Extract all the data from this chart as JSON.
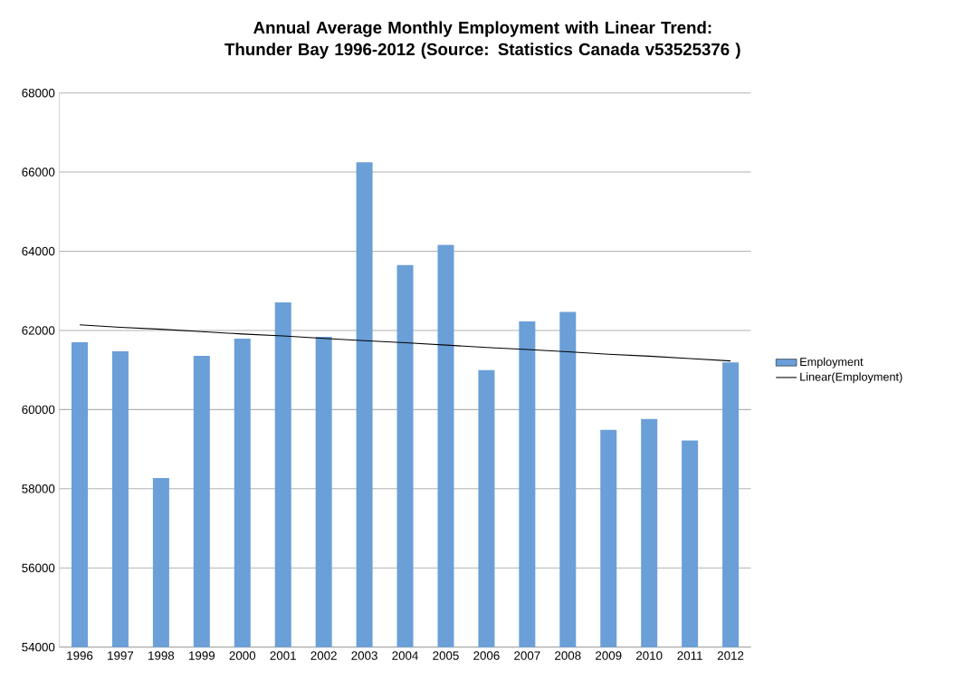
{
  "chart_data": {
    "type": "bar",
    "title": "Annual Average Monthly Employment with Linear Trend: Thunder Bay 1996-2012 (Source: Statistics Canada v53525376 )",
    "categories": [
      "1996",
      "1997",
      "1998",
      "1999",
      "2000",
      "2001",
      "2002",
      "2003",
      "2004",
      "2005",
      "2006",
      "2007",
      "2008",
      "2009",
      "2010",
      "2011",
      "2012"
    ],
    "series": [
      {
        "name": "Employment",
        "color": "#6a9fd8",
        "values": [
          61700,
          61470,
          58270,
          61360,
          61790,
          62710,
          61840,
          66250,
          63650,
          64160,
          61000,
          62230,
          62470,
          59490,
          59760,
          59220,
          61190
        ]
      },
      {
        "name": "Linear(Employment)",
        "type": "line",
        "color": "#000000",
        "values": [
          62140,
          62080,
          62030,
          61970,
          61910,
          61860,
          61800,
          61740,
          61690,
          61630,
          61570,
          61520,
          61460,
          61400,
          61350,
          61290,
          61230
        ]
      }
    ],
    "ylim": [
      54000,
      68000
    ],
    "yticks": [
      54000,
      56000,
      58000,
      60000,
      62000,
      64000,
      66000,
      68000
    ],
    "grid": "y",
    "legend": "right"
  }
}
